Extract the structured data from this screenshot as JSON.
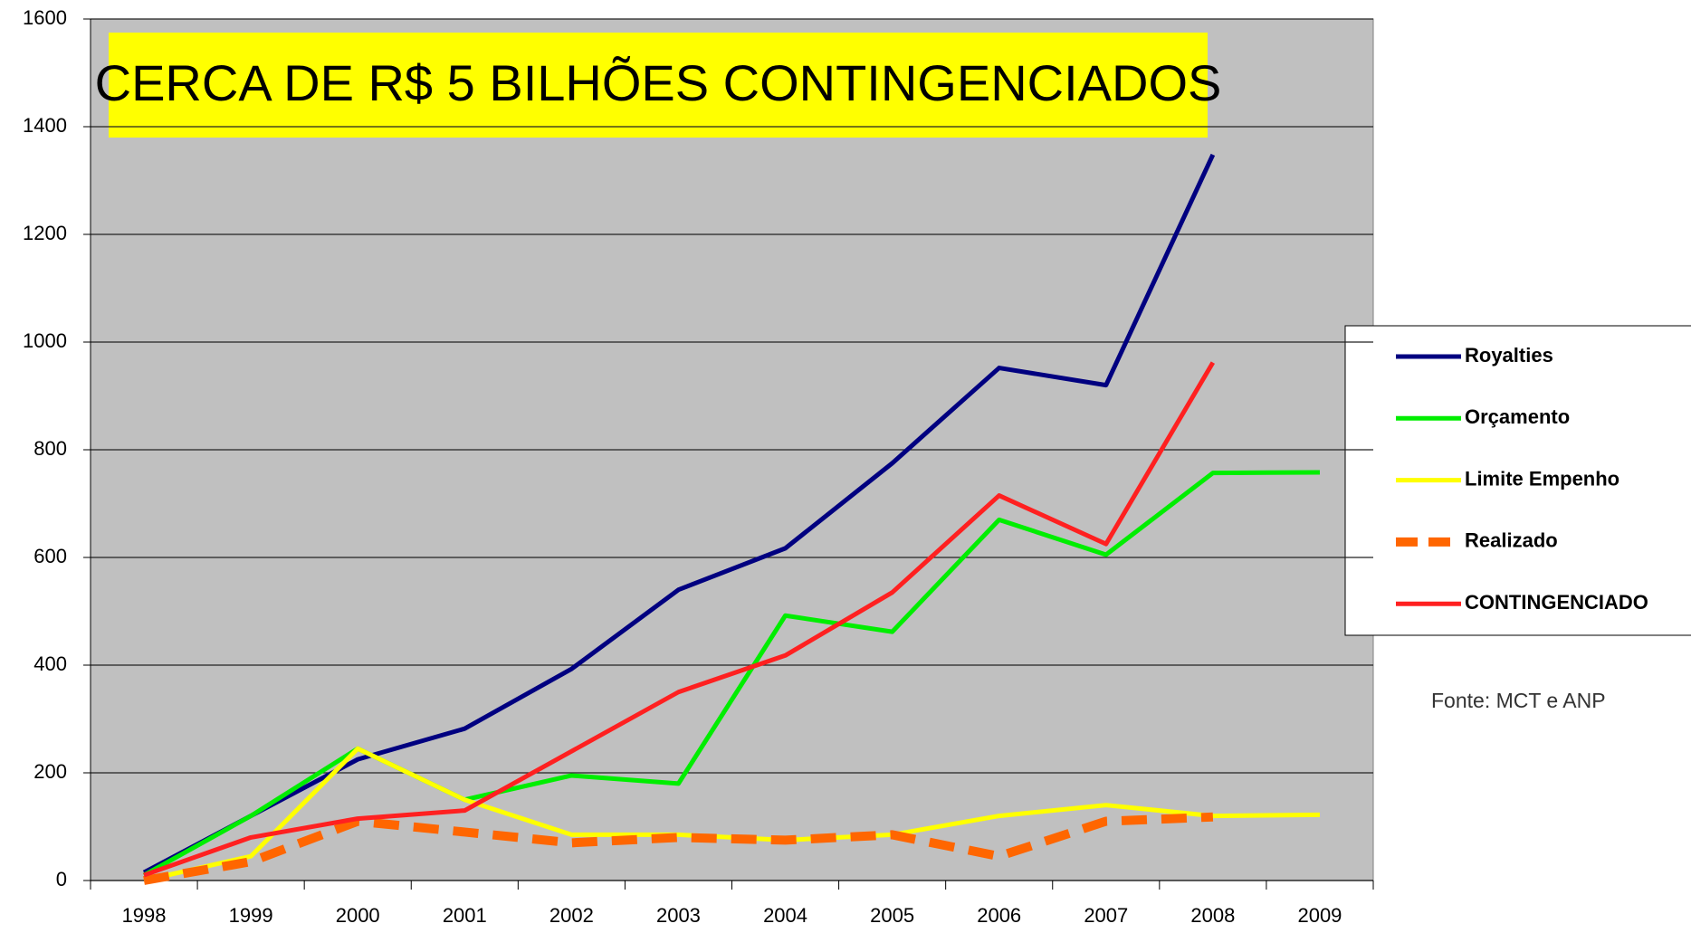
{
  "chart_data": {
    "type": "line",
    "title": "CERCA DE R$ 5 BILHÕES CONTINGENCIADOS",
    "note": "Fonte:  MCT e ANP",
    "categories": [
      "1998",
      "1999",
      "2000",
      "2001",
      "2002",
      "2003",
      "2004",
      "2005",
      "2006",
      "2007",
      "2008",
      "2009"
    ],
    "series": [
      {
        "name": "Royalties",
        "color": "#000080",
        "values": [
          15,
          120,
          225,
          282,
          393,
          540,
          617,
          775,
          952,
          920,
          1348,
          null
        ]
      },
      {
        "name": "Orçamento",
        "color": "#00ee00",
        "values": [
          10,
          120,
          245,
          150,
          195,
          180,
          492,
          462,
          670,
          605,
          757,
          758
        ]
      },
      {
        "name": "Limite Empenho",
        "color": "#ffff00",
        "values": [
          0,
          45,
          245,
          150,
          85,
          85,
          75,
          85,
          120,
          140,
          120,
          122
        ]
      },
      {
        "name": "Realizado",
        "color": "#ff6600",
        "dashed": true,
        "values": [
          0,
          35,
          110,
          90,
          70,
          80,
          75,
          85,
          45,
          110,
          118,
          null
        ]
      },
      {
        "name": "CONTINGENCIADO",
        "color": "#ff2020",
        "values": [
          10,
          80,
          115,
          130,
          240,
          350,
          418,
          535,
          715,
          625,
          962,
          null
        ]
      }
    ],
    "ylim": [
      0,
      1600
    ],
    "yticks": [
      0,
      200,
      400,
      600,
      800,
      1000,
      1200,
      1400,
      1600
    ],
    "grid": true,
    "legend": "right"
  }
}
